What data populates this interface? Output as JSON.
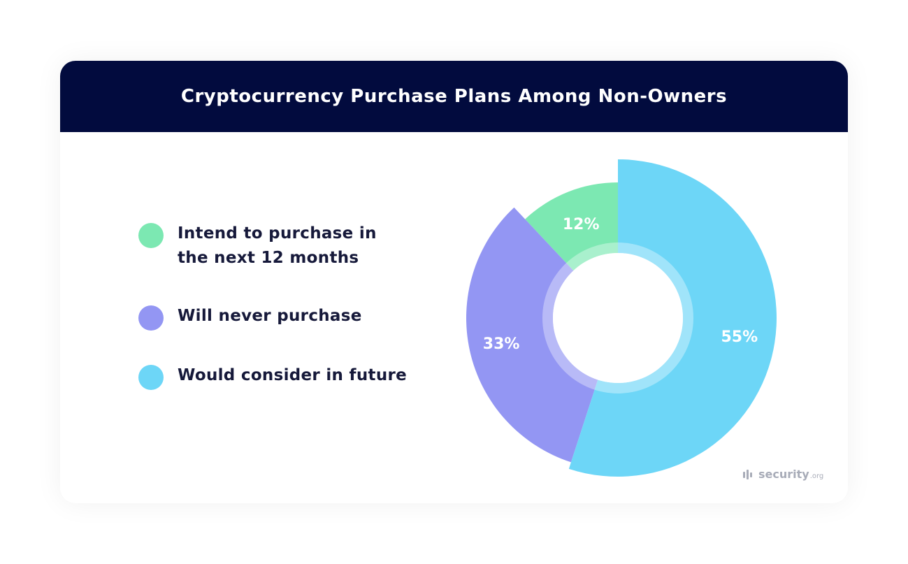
{
  "header": {
    "title": "Cryptocurrency Purchase Plans Among Non-Owners"
  },
  "chart_data": {
    "type": "pie",
    "title": "Cryptocurrency Purchase Plans Among Non-Owners",
    "style": "exploded-donut",
    "legend_position": "left",
    "series": [
      {
        "name": "Intend to purchase in\nthe next 12 months",
        "value": 12,
        "label": "12%",
        "color": "#7ce8b2"
      },
      {
        "name": "Will never purchase",
        "value": 33,
        "label": "33%",
        "color": "#9396f3"
      },
      {
        "name": "Would consider in future",
        "value": 55,
        "label": "55%",
        "color": "#6dd6f7"
      }
    ]
  },
  "brand": {
    "name": "security",
    "tld": ".org"
  }
}
